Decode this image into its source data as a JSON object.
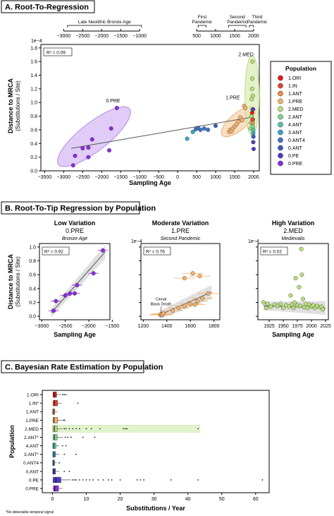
{
  "panels": {
    "a": {
      "title": "A. Root-To-Regression"
    },
    "b": {
      "title": "B. Root-To-Tip Regression by Population"
    },
    "c": {
      "title": "C. Bayesian Rate Estimation by Population"
    }
  },
  "colors": {
    "1.ORI": "#e41a1c",
    "1.IN": "#e8432e",
    "1.ANT": "#f28a3c",
    "1.PRE": "#f5b26b",
    "2.MED": "#b8e07a",
    "2.ANT": "#7fd68b",
    "4.ANT": "#52c4a8",
    "3.ANT": "#33a6c8",
    "0.ANT4": "#3f73c8",
    "0.ANT": "#3d58c0",
    "0.PE": "#4b3cc4",
    "0.PRE": "#8a2be2",
    "trend": "#555555",
    "frame": "#000000",
    "panel_header_border": "#000000"
  },
  "chart_data": [
    {
      "type": "scatter",
      "panel": "A",
      "xlabel": "Sampling Age",
      "ylabel_line1": "Distance to MRCA",
      "ylabel_line2": "(Substitutions / Site)",
      "y_exponent": "1e−4",
      "xlim": [
        -3000,
        2100
      ],
      "ylim": [
        0,
        1.8
      ],
      "x_ticks": [
        "−3500",
        "−3000",
        "−2500",
        "−2000",
        "−1500",
        "−1000",
        "−500",
        "0",
        "500",
        "1000",
        "1500",
        "2000"
      ],
      "y_ticks": [
        "0.0",
        "0.2",
        "0.4",
        "0.6",
        "0.8",
        "1.0",
        "1.2",
        "1.4",
        "1.6",
        "1.8"
      ],
      "top_ticks": [
        "−3000",
        "−2500",
        "−2000",
        "−1500",
        "−1000",
        "500",
        "1000",
        "1500",
        "2000"
      ],
      "top_eras": [
        {
          "label": "Late Neolithic Bronze Age",
          "from": -2900,
          "to": -950
        },
        {
          "label": "First Pandemic",
          "from": 540,
          "to": 750
        },
        {
          "label": "Second Pandemic",
          "from": 1340,
          "to": 1800
        },
        {
          "label": "Third Pandemic",
          "from": 1890,
          "to": 2000
        }
      ],
      "r2": "R² = 0.09",
      "ellipse_labels": {
        "pre0": "0.PRE",
        "pre1": "1.PRE",
        "med2": "2.MED"
      },
      "trend": [
        [
          -2800,
          0.33
        ],
        [
          2000,
          0.79
        ]
      ],
      "points": [
        {
          "x": -2750,
          "y": 0.08,
          "pop": "0.PRE"
        },
        {
          "x": -2700,
          "y": 0.22,
          "pop": "0.PRE"
        },
        {
          "x": -2500,
          "y": 0.33,
          "pop": "0.PRE"
        },
        {
          "x": -2350,
          "y": 0.2,
          "pop": "0.PRE"
        },
        {
          "x": -2350,
          "y": 0.34,
          "pop": "0.PRE"
        },
        {
          "x": -2250,
          "y": 0.46,
          "pop": "0.PRE"
        },
        {
          "x": -1800,
          "y": 0.3,
          "pop": "0.PRE"
        },
        {
          "x": -1750,
          "y": 0.62,
          "pop": "0.PRE"
        },
        {
          "x": -1600,
          "y": 0.92,
          "pop": "0.PRE"
        },
        {
          "x": 250,
          "y": 0.47,
          "pop": "3.ANT"
        },
        {
          "x": 400,
          "y": 0.57,
          "pop": "3.ANT"
        },
        {
          "x": 480,
          "y": 0.61,
          "pop": "0.ANT4"
        },
        {
          "x": 540,
          "y": 0.63,
          "pop": "0.ANT4"
        },
        {
          "x": 600,
          "y": 0.6,
          "pop": "0.ANT4"
        },
        {
          "x": 700,
          "y": 0.62,
          "pop": "0.ANT4"
        },
        {
          "x": 800,
          "y": 0.6,
          "pop": "0.ANT4"
        },
        {
          "x": 1000,
          "y": 0.66,
          "pop": "0.ANT"
        },
        {
          "x": 1360,
          "y": 0.57,
          "pop": "1.PRE"
        },
        {
          "x": 1380,
          "y": 0.6,
          "pop": "1.PRE"
        },
        {
          "x": 1420,
          "y": 0.58,
          "pop": "1.PRE"
        },
        {
          "x": 1450,
          "y": 0.62,
          "pop": "1.PRE"
        },
        {
          "x": 1500,
          "y": 0.65,
          "pop": "1.PRE"
        },
        {
          "x": 1550,
          "y": 0.68,
          "pop": "1.PRE"
        },
        {
          "x": 1600,
          "y": 0.72,
          "pop": "1.PRE"
        },
        {
          "x": 1650,
          "y": 0.78,
          "pop": "1.PRE"
        },
        {
          "x": 1700,
          "y": 0.74,
          "pop": "1.PRE"
        },
        {
          "x": 1750,
          "y": 0.95,
          "pop": "1.PRE"
        },
        {
          "x": 1780,
          "y": 0.92,
          "pop": "1.PRE"
        },
        {
          "x": 1920,
          "y": 0.62,
          "pop": "2.MED"
        },
        {
          "x": 1930,
          "y": 0.7,
          "pop": "2.MED"
        },
        {
          "x": 1940,
          "y": 0.8,
          "pop": "2.MED"
        },
        {
          "x": 1950,
          "y": 1.05,
          "pop": "2.MED"
        },
        {
          "x": 1960,
          "y": 1.2,
          "pop": "2.MED"
        },
        {
          "x": 1965,
          "y": 1.35,
          "pop": "2.MED"
        },
        {
          "x": 1970,
          "y": 1.6,
          "pop": "2.MED"
        },
        {
          "x": 1975,
          "y": 0.9,
          "pop": "2.MED"
        },
        {
          "x": 1980,
          "y": 1.1,
          "pop": "2.MED"
        },
        {
          "x": 1985,
          "y": 0.75,
          "pop": "2.MED"
        },
        {
          "x": 1960,
          "y": 0.85,
          "pop": "1.ORI"
        },
        {
          "x": 1970,
          "y": 0.75,
          "pop": "1.IN"
        },
        {
          "x": 1975,
          "y": 0.7,
          "pop": "1.ANT"
        },
        {
          "x": 1980,
          "y": 0.65,
          "pop": "2.ANT"
        },
        {
          "x": 1985,
          "y": 0.6,
          "pop": "4.ANT"
        },
        {
          "x": 1990,
          "y": 0.55,
          "pop": "3.ANT"
        },
        {
          "x": 1995,
          "y": 0.5,
          "pop": "0.ANT"
        },
        {
          "x": 1985,
          "y": 0.9,
          "pop": "0.PE"
        },
        {
          "x": 1990,
          "y": 0.42,
          "pop": "0.PE"
        },
        {
          "x": 2000,
          "y": 0.32,
          "pop": "0.PE"
        }
      ],
      "legend": {
        "title": "Population",
        "entries": [
          "1.ORI",
          "1.IN",
          "1.ANT",
          "1.PRE",
          "2.MED",
          "2.ANT",
          "4.ANT",
          "3.ANT",
          "0.ANT4",
          "0.ANT",
          "0.PE",
          "0.PRE"
        ]
      }
    },
    {
      "type": "scatter",
      "panel": "B1",
      "title": "Low Variation",
      "subtitle": "0.PRE",
      "note": "Bronze Age",
      "r2": "R² = 0.92",
      "xlabel": "Sampling Age",
      "ylabel_line1": "Distance to MRCA",
      "ylabel_line2": "(Substitutions / Site)",
      "xlim": [
        -3050,
        -1550
      ],
      "ylim": [
        -0.05,
        1.05
      ],
      "x_ticks": [
        "−3000",
        "−2500",
        "−2000",
        "−1500"
      ],
      "y_ticks": [
        "0.0",
        "0.2",
        "0.4",
        "0.6",
        "0.8",
        "1.0"
      ],
      "trend": [
        [
          -2800,
          0.05
        ],
        [
          -1650,
          0.93
        ]
      ],
      "points": [
        {
          "x": -2750,
          "y": 0.08
        },
        {
          "x": -2700,
          "y": 0.22
        },
        {
          "x": -2500,
          "y": 0.3
        },
        {
          "x": -2400,
          "y": 0.33
        },
        {
          "x": -2300,
          "y": 0.33
        },
        {
          "x": -2250,
          "y": 0.45
        },
        {
          "x": -1900,
          "y": 0.62
        },
        {
          "x": -1700,
          "y": 0.95
        }
      ]
    },
    {
      "type": "scatter",
      "panel": "B2",
      "title": "Moderate Variation",
      "subtitle": "1.PRE",
      "note": "Second Pandemic",
      "r2": "R² = 0.76",
      "y_exponent": "1e−4",
      "annotation_line1": "Clonal",
      "annotation_line2": "Black Death",
      "xlim": [
        1180,
        1850
      ],
      "ylim": [
        -0.05,
        1.05
      ],
      "x_ticks": [
        "1200",
        "1400",
        "1600",
        "1800"
      ],
      "trend": [
        [
          1340,
          0.02
        ],
        [
          1780,
          0.35
        ]
      ],
      "points": [
        {
          "x": 1345,
          "y": 0.02
        },
        {
          "x": 1350,
          "y": 0.03
        },
        {
          "x": 1360,
          "y": 0.02
        },
        {
          "x": 1370,
          "y": 0.04
        },
        {
          "x": 1450,
          "y": 0.08
        },
        {
          "x": 1500,
          "y": 0.12
        },
        {
          "x": 1550,
          "y": 0.15
        },
        {
          "x": 1600,
          "y": 0.18
        },
        {
          "x": 1640,
          "y": 0.17
        },
        {
          "x": 1660,
          "y": 0.22
        },
        {
          "x": 1700,
          "y": 0.26
        },
        {
          "x": 1750,
          "y": 0.33
        },
        {
          "x": 1550,
          "y": 0.55
        },
        {
          "x": 1620,
          "y": 0.62
        },
        {
          "x": 1680,
          "y": 0.58
        }
      ]
    },
    {
      "type": "scatter",
      "panel": "B3",
      "title": "High Variation",
      "subtitle": "2.MED",
      "note": "Medievalis",
      "r2": "R² = 0.02",
      "xlabel": "Sampling Age",
      "y_exponent": "1e−4",
      "xlim": [
        1905,
        2030
      ],
      "ylim": [
        -0.05,
        1.05
      ],
      "x_ticks": [
        "1925",
        "1950",
        "1975",
        "2000",
        "2025"
      ],
      "trend": [
        [
          1915,
          0.15
        ],
        [
          2025,
          0.12
        ]
      ],
      "points": [
        {
          "x": 1915,
          "y": 0.2
        },
        {
          "x": 1920,
          "y": 0.12
        },
        {
          "x": 1922,
          "y": 0.18
        },
        {
          "x": 1928,
          "y": 0.14
        },
        {
          "x": 1935,
          "y": 0.17
        },
        {
          "x": 1940,
          "y": 0.15
        },
        {
          "x": 1945,
          "y": 0.18
        },
        {
          "x": 1950,
          "y": 0.12
        },
        {
          "x": 1955,
          "y": 0.16
        },
        {
          "x": 1960,
          "y": 0.14
        },
        {
          "x": 1963,
          "y": 0.3
        },
        {
          "x": 1965,
          "y": 0.17
        },
        {
          "x": 1968,
          "y": 0.12
        },
        {
          "x": 1970,
          "y": 0.2
        },
        {
          "x": 1972,
          "y": 0.55
        },
        {
          "x": 1975,
          "y": 0.16
        },
        {
          "x": 1978,
          "y": 0.42
        },
        {
          "x": 1980,
          "y": 0.15
        },
        {
          "x": 1982,
          "y": 0.97
        },
        {
          "x": 1983,
          "y": 0.6
        },
        {
          "x": 1985,
          "y": 0.25
        },
        {
          "x": 1987,
          "y": 0.13
        },
        {
          "x": 1990,
          "y": 0.18
        },
        {
          "x": 1993,
          "y": 0.12
        },
        {
          "x": 1996,
          "y": 0.17
        },
        {
          "x": 2000,
          "y": 0.14
        },
        {
          "x": 2003,
          "y": 0.16
        },
        {
          "x": 2006,
          "y": 0.12
        },
        {
          "x": 2010,
          "y": 0.15
        },
        {
          "x": 2015,
          "y": 0.13
        },
        {
          "x": 2018,
          "y": 0.14
        },
        {
          "x": 2020,
          "y": 0.1
        }
      ]
    },
    {
      "type": "box",
      "panel": "C",
      "xlabel": "Substitutions / Year",
      "ylabel": "Population",
      "footnote": "*No detectable temporal signal",
      "xlim": [
        -3,
        64
      ],
      "x_ticks": [
        "0",
        "10",
        "20",
        "30",
        "40",
        "50",
        "60"
      ],
      "x_tick_values": [
        0,
        10,
        20,
        30,
        40,
        50,
        60
      ],
      "rows": [
        {
          "label": "1.ORI",
          "pop": "1.ORI",
          "q1": 0.2,
          "median": 0.5,
          "q3": 1.2,
          "whisker": 2.5,
          "outliers": [
            3.0,
            3.5,
            4.0
          ]
        },
        {
          "label": "1.IN*",
          "pop": "1.IN",
          "q1": 0.2,
          "median": 0.6,
          "q3": 1.5,
          "whisker": 2.8,
          "outliers": [
            7.5
          ]
        },
        {
          "label": "1.ANT",
          "pop": "1.ANT",
          "q1": 0.1,
          "median": 0.3,
          "q3": 0.7,
          "whisker": 1.5,
          "outliers": []
        },
        {
          "label": "1.PRE",
          "pop": "1.PRE",
          "q1": 0.2,
          "median": 0.5,
          "q3": 1.5,
          "whisker": 2.8,
          "outliers": [
            3.2,
            3.6
          ]
        },
        {
          "label": "2.MED",
          "pop": "2.MED",
          "q1": 0.2,
          "median": 0.6,
          "q3": 1.4,
          "whisker": 3.0,
          "outliers": [
            3.5,
            4.0,
            5.0,
            6.0,
            7.0,
            8.0,
            10.0,
            11.5,
            14.0,
            21.0,
            21.5,
            22.0,
            43.0
          ],
          "band_to": 43.5
        },
        {
          "label": "2.ANT*",
          "pop": "2.ANT",
          "q1": 0.2,
          "median": 0.6,
          "q3": 1.4,
          "whisker": 3.0,
          "outliers": [
            3.8,
            4.5,
            5.5,
            9.0,
            12.5
          ]
        },
        {
          "label": "4.ANT",
          "pop": "4.ANT",
          "q1": 0.1,
          "median": 0.4,
          "q3": 1.0,
          "whisker": 2.0,
          "outliers": [
            3.0,
            4.0
          ]
        },
        {
          "label": "3.ANT*",
          "pop": "3.ANT",
          "q1": 0.1,
          "median": 0.4,
          "q3": 0.9,
          "whisker": 2.0,
          "outliers": [
            3.5,
            7.0
          ]
        },
        {
          "label": "0.ANT4",
          "pop": "0.ANT4",
          "q1": 0.1,
          "median": 0.3,
          "q3": 0.6,
          "whisker": 1.2,
          "outliers": [
            2.0
          ]
        },
        {
          "label": "0.ANT",
          "pop": "0.ANT",
          "q1": 0.1,
          "median": 0.4,
          "q3": 0.9,
          "whisker": 2.0,
          "outliers": [
            3.5,
            5.0
          ]
        },
        {
          "label": "0.PE",
          "pop": "0.PE",
          "q1": 0.2,
          "median": 1.0,
          "q3": 2.5,
          "whisker": 5.5,
          "outliers": [
            6.0,
            6.5,
            7.0,
            8.0,
            9.0,
            10.0,
            11.0,
            12.0,
            13.5,
            15.0,
            16.5,
            17.5,
            20.0,
            25.0,
            26.0,
            27.0,
            35.0,
            43.0,
            62.0
          ]
        },
        {
          "label": "0.PRE",
          "pop": "0.PRE",
          "q1": 0.3,
          "median": 0.7,
          "q3": 1.8,
          "whisker": 3.0,
          "outliers": []
        }
      ]
    }
  ]
}
